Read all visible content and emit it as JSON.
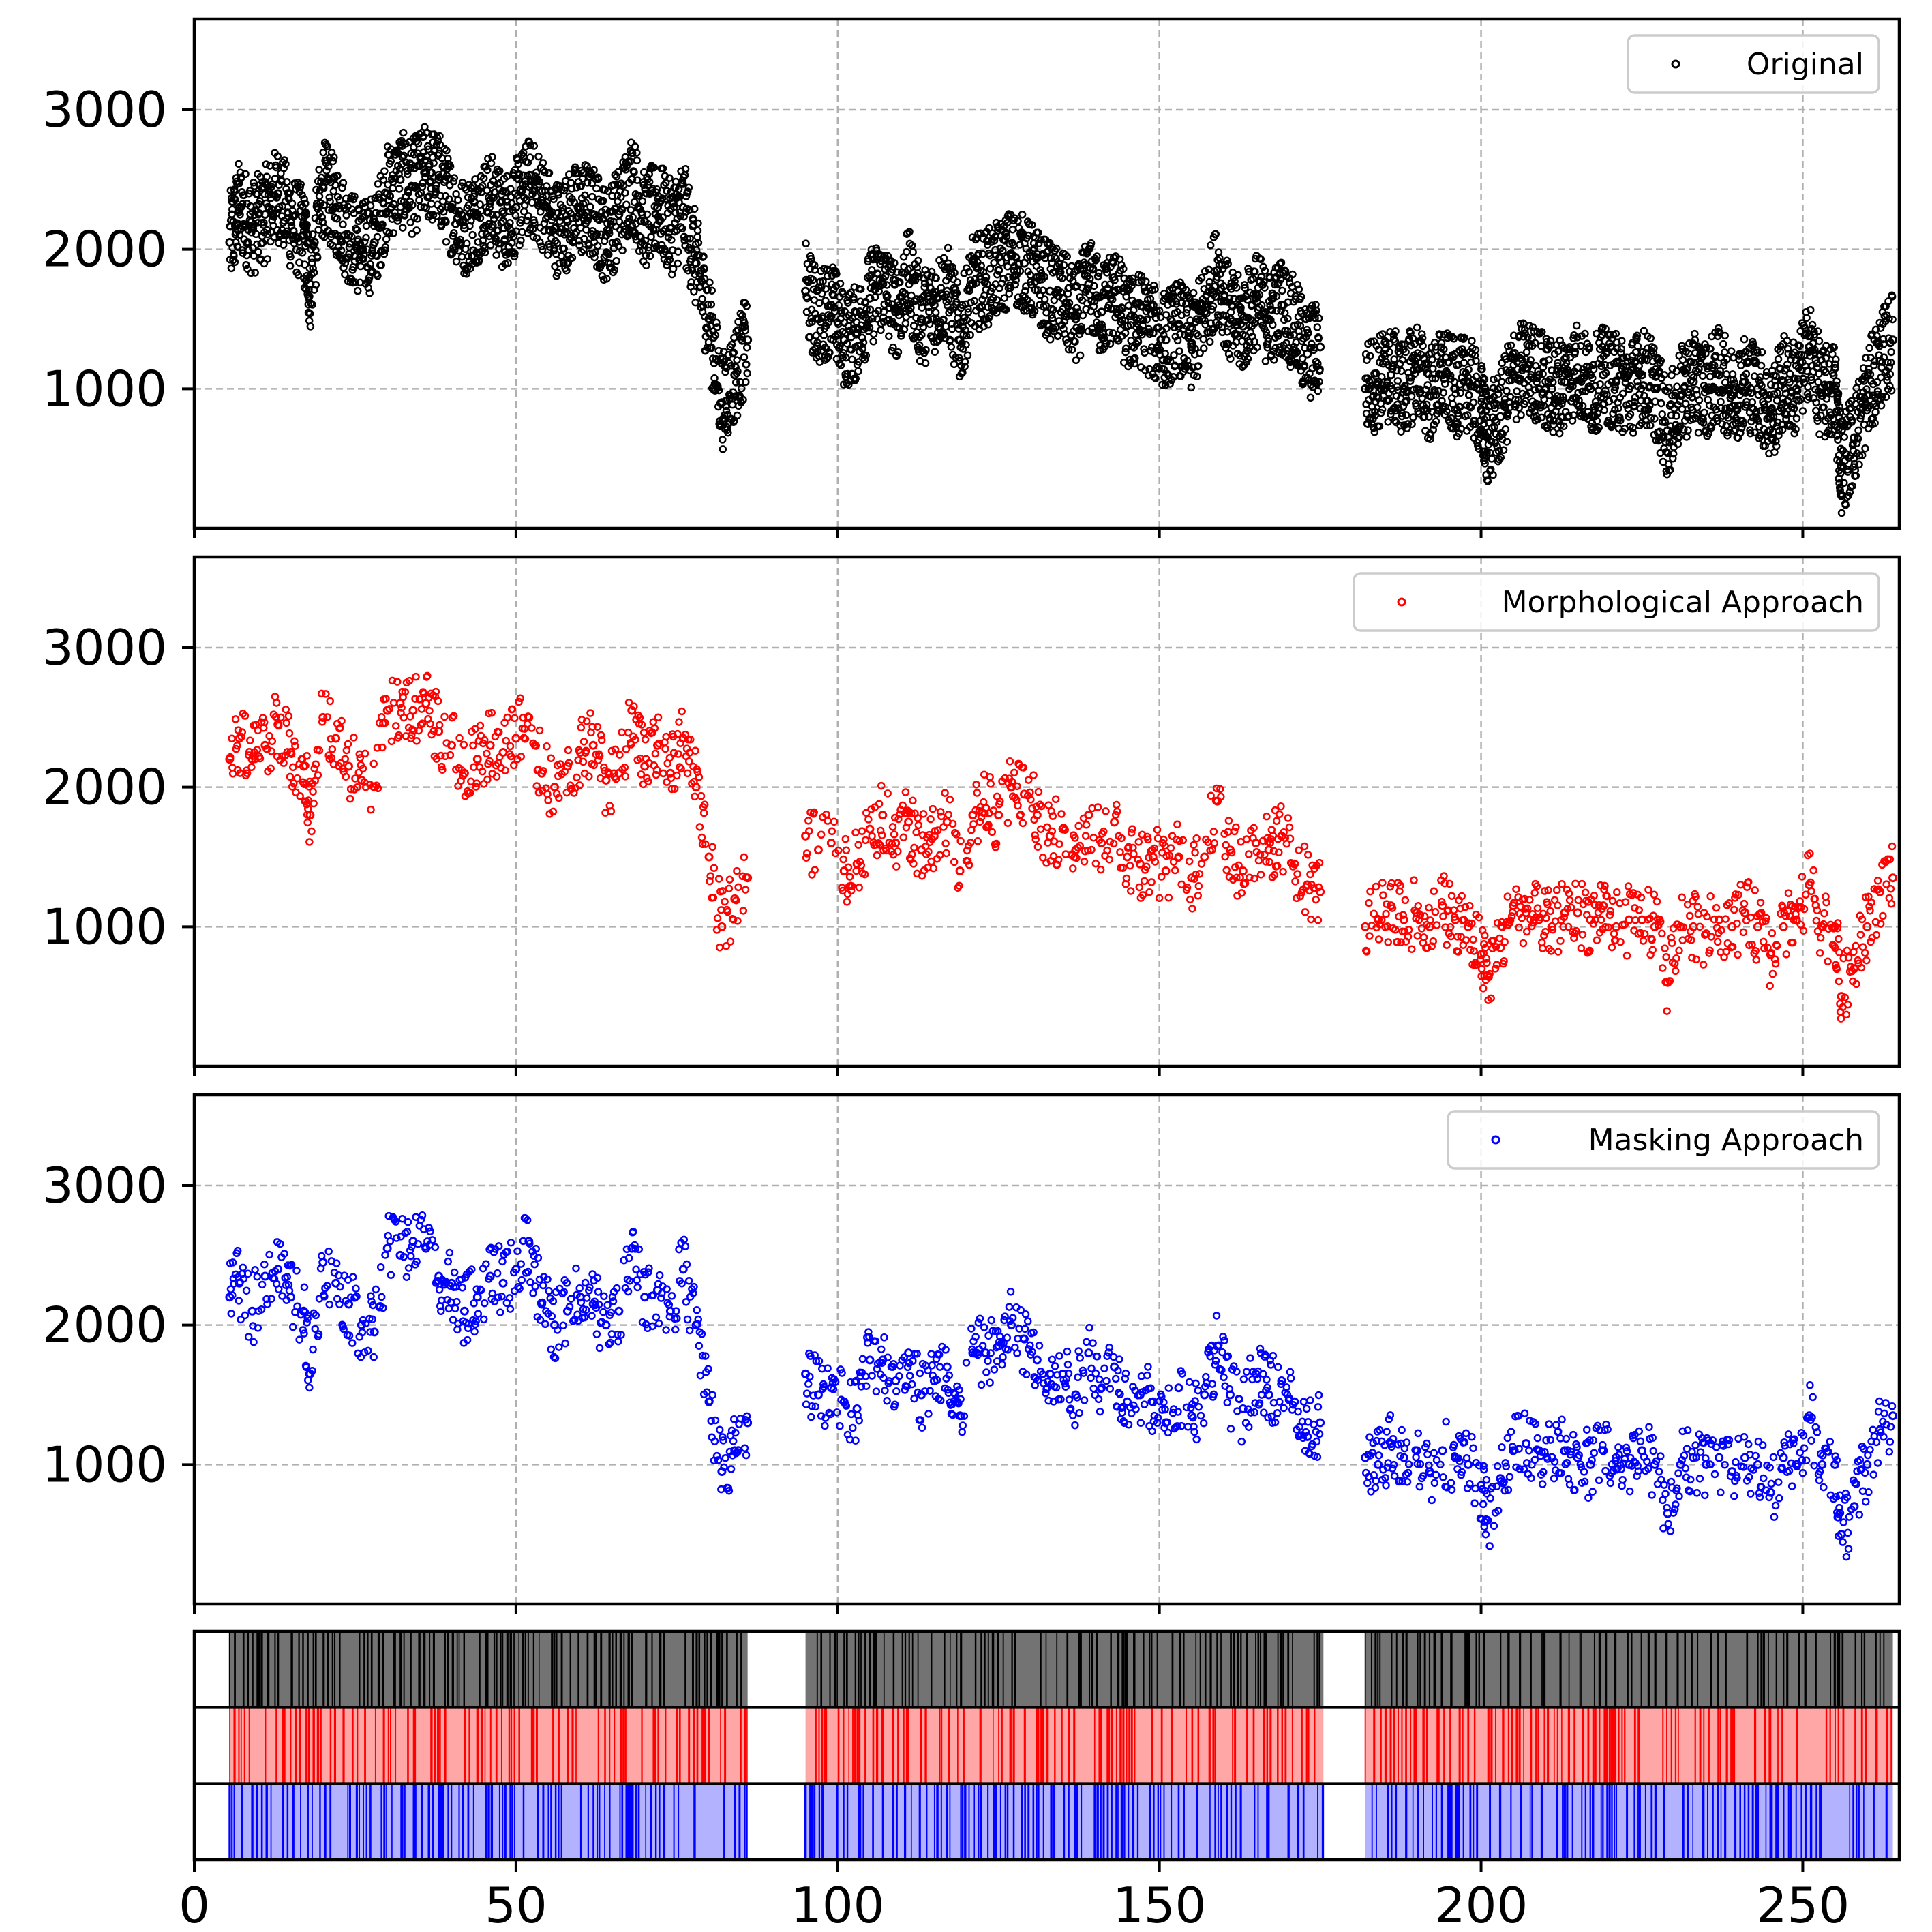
{
  "chart_data": [
    {
      "type": "scatter",
      "title": "",
      "xlabel": "",
      "ylabel": "",
      "xlim": [
        0,
        265
      ],
      "ylim": [
        0,
        3650
      ],
      "yticks": [
        1000,
        2000,
        3000
      ],
      "grid": true,
      "legend_location": "upper right",
      "series": [
        {
          "name": "Original",
          "color": "#000000",
          "marker": "open-circle",
          "segments": [
            {
              "x": [
                5.5,
                7,
                9,
                11,
                13,
                15,
                17,
                18,
                20,
                22,
                24,
                26,
                28,
                30,
                32,
                34,
                36,
                38,
                40,
                42,
                44,
                46,
                48,
                50,
                52,
                54,
                56,
                58,
                60,
                62,
                64,
                66,
                68,
                70,
                72,
                74,
                76,
                78,
                80,
                82,
                84,
                86
              ],
              "y": [
                2050,
                2300,
                2150,
                2250,
                2400,
                2200,
                2100,
                1750,
                2450,
                2300,
                2100,
                2000,
                2050,
                2400,
                2500,
                2450,
                2550,
                2500,
                2300,
                2150,
                2250,
                2350,
                2200,
                2300,
                2450,
                2350,
                2150,
                2200,
                2300,
                2250,
                2100,
                2250,
                2500,
                2200,
                2300,
                2150,
                2300,
                1900,
                1500,
                900,
                1100,
                1350
              ]
            },
            {
              "x": [
                95,
                97,
                99,
                101,
                103,
                105,
                107,
                109,
                111,
                113,
                115,
                117,
                119,
                121,
                123,
                125,
                127,
                129,
                131,
                133,
                135,
                137,
                139,
                141,
                143,
                145,
                147,
                149,
                151,
                153,
                155,
                157,
                159,
                161,
                163,
                165,
                167,
                169,
                171,
                173,
                175
              ],
              "y": [
                1700,
                1500,
                1600,
                1350,
                1400,
                1650,
                1750,
                1550,
                1800,
                1500,
                1600,
                1700,
                1350,
                1750,
                1800,
                1850,
                1950,
                1900,
                1800,
                1700,
                1650,
                1500,
                1750,
                1550,
                1700,
                1450,
                1500,
                1400,
                1350,
                1450,
                1300,
                1550,
                1850,
                1500,
                1450,
                1650,
                1500,
                1600,
                1450,
                1250,
                1300
              ]
            },
            {
              "x": [
                182,
                184,
                186,
                188,
                190,
                192,
                194,
                196,
                198,
                200,
                201,
                203,
                205,
                207,
                209,
                211,
                213,
                215,
                217,
                219,
                221,
                223,
                225,
                227,
                229,
                231,
                233,
                235,
                237,
                239,
                241,
                243,
                245,
                247,
                249,
                251,
                253,
                255,
                256,
                258,
                260,
                262,
                264
              ],
              "y": [
                1000,
                1050,
                1100,
                1000,
                1150,
                950,
                1100,
                1000,
                1050,
                850,
                650,
                800,
                1100,
                1150,
                1100,
                1000,
                1050,
                1150,
                1000,
                1100,
                1050,
                1000,
                1100,
                1000,
                700,
                950,
                1050,
                1000,
                1100,
                950,
                1050,
                1000,
                800,
                1050,
                1000,
                1300,
                950,
                1000,
                450,
                650,
                950,
                1200,
                1350
              ]
            }
          ]
        }
      ]
    },
    {
      "type": "scatter",
      "title": "",
      "xlabel": "",
      "ylabel": "",
      "xlim": [
        0,
        265
      ],
      "ylim": [
        0,
        3650
      ],
      "yticks": [
        1000,
        2000,
        3000
      ],
      "grid": true,
      "legend_location": "upper right",
      "series": [
        {
          "name": "Morphological Approach",
          "color": "#ff0000",
          "marker": "open-circle",
          "segments": [
            {
              "x": [
                5.5,
                7,
                9,
                11,
                13,
                15,
                17,
                18,
                20,
                22,
                24,
                26,
                28,
                30,
                32,
                34,
                36,
                38,
                40,
                42,
                44,
                46,
                48,
                50,
                52,
                54,
                56,
                58,
                60,
                62,
                64,
                66,
                68,
                70,
                72,
                74,
                76,
                78,
                80,
                82,
                84,
                86
              ],
              "y": [
                2200,
                2350,
                2200,
                2300,
                2450,
                2250,
                2150,
                1800,
                2500,
                2350,
                2150,
                2050,
                2000,
                2550,
                2600,
                2550,
                2600,
                2400,
                2300,
                2100,
                2200,
                2300,
                2250,
                2350,
                2500,
                2100,
                2000,
                2150,
                2250,
                2300,
                2050,
                2100,
                2550,
                2150,
                2300,
                2100,
                2350,
                2000,
                1500,
                1000,
                1200,
                1350
              ]
            },
            {
              "x": [
                95,
                97,
                99,
                101,
                103,
                105,
                107,
                109,
                111,
                113,
                115,
                117,
                119,
                121,
                123,
                125,
                127,
                129,
                131,
                133,
                135,
                137,
                139,
                141,
                143,
                145,
                147,
                149,
                151,
                153,
                155,
                157,
                159,
                161,
                163,
                165,
                167,
                169,
                171,
                173,
                175
              ],
              "y": [
                1650,
                1550,
                1600,
                1400,
                1450,
                1700,
                1800,
                1600,
                1750,
                1550,
                1650,
                1750,
                1400,
                1800,
                1850,
                1800,
                2000,
                1950,
                1800,
                1650,
                1700,
                1550,
                1800,
                1600,
                1750,
                1500,
                1450,
                1500,
                1400,
                1500,
                1350,
                1500,
                1900,
                1550,
                1400,
                1600,
                1550,
                1650,
                1450,
                1300,
                1250
              ]
            },
            {
              "x": [
                182,
                184,
                186,
                188,
                190,
                192,
                194,
                196,
                198,
                200,
                201,
                203,
                205,
                207,
                209,
                211,
                213,
                215,
                217,
                219,
                221,
                223,
                225,
                227,
                229,
                231,
                233,
                235,
                237,
                239,
                241,
                243,
                245,
                247,
                249,
                251,
                253,
                255,
                256,
                258,
                260,
                262,
                264
              ],
              "y": [
                1000,
                1050,
                1150,
                1050,
                1100,
                1000,
                1150,
                1050,
                1000,
                800,
                650,
                850,
                1150,
                1100,
                1050,
                1000,
                1100,
                1100,
                1050,
                1150,
                1000,
                1050,
                1050,
                1000,
                600,
                1000,
                1000,
                950,
                1050,
                1000,
                1100,
                1000,
                800,
                1000,
                1050,
                1300,
                1000,
                1000,
                500,
                700,
                1000,
                1250,
                1350
              ]
            }
          ]
        }
      ]
    },
    {
      "type": "scatter",
      "title": "",
      "xlabel": "",
      "ylabel": "",
      "xlim": [
        0,
        265
      ],
      "ylim": [
        0,
        3650
      ],
      "yticks": [
        1000,
        2000,
        3000
      ],
      "grid": true,
      "legend_location": "upper right",
      "series": [
        {
          "name": "Masking Approach",
          "color": "#0000ff",
          "marker": "open-circle",
          "segments": [
            {
              "x": [
                5.5,
                7,
                9,
                11,
                13,
                15,
                17,
                18,
                20,
                22,
                24,
                26,
                28,
                30,
                32,
                34,
                36,
                38,
                40,
                42,
                44,
                46,
                48,
                50,
                52,
                54,
                56,
                58,
                60,
                62,
                64,
                66,
                68,
                70,
                72,
                74,
                76,
                78,
                80,
                82,
                84,
                86
              ],
              "y": [
                2200,
                2300,
                2100,
                2350,
                2400,
                2200,
                2100,
                1650,
                2450,
                2300,
                2150,
                2000,
                1950,
                2550,
                2500,
                2600,
                2550,
                2350,
                2300,
                2100,
                2200,
                2350,
                2300,
                2400,
                2600,
                2150,
                2000,
                2100,
                2200,
                2150,
                2000,
                2100,
                2550,
                2200,
                2250,
                2100,
                2400,
                2000,
                1450,
                950,
                1100,
                1300
              ]
            },
            {
              "x": [
                95,
                97,
                99,
                101,
                103,
                105,
                107,
                109,
                111,
                113,
                115,
                117,
                119,
                121,
                123,
                125,
                127,
                129,
                131,
                133,
                135,
                137,
                139,
                141,
                143,
                145,
                147,
                149,
                151,
                153,
                155,
                157,
                159,
                161,
                163,
                165,
                167,
                169,
                171,
                173,
                175
              ],
              "y": [
                1650,
                1500,
                1550,
                1450,
                1400,
                1750,
                1750,
                1600,
                1800,
                1500,
                1600,
                1700,
                1350,
                1800,
                1800,
                1850,
                2000,
                1900,
                1750,
                1650,
                1650,
                1500,
                1800,
                1550,
                1700,
                1450,
                1500,
                1450,
                1300,
                1550,
                1350,
                1500,
                1850,
                1500,
                1400,
                1650,
                1500,
                1600,
                1450,
                1200,
                1300
              ]
            },
            {
              "x": [
                182,
                184,
                186,
                188,
                190,
                192,
                194,
                196,
                198,
                200,
                201,
                203,
                205,
                207,
                209,
                211,
                213,
                215,
                217,
                219,
                221,
                223,
                225,
                227,
                229,
                231,
                233,
                235,
                237,
                239,
                241,
                243,
                245,
                247,
                249,
                251,
                253,
                255,
                256,
                258,
                260,
                262,
                264
              ],
              "y": [
                1050,
                1000,
                1150,
                1050,
                1100,
                950,
                1100,
                1050,
                1000,
                850,
                600,
                900,
                1100,
                1150,
                1100,
                1050,
                1100,
                1050,
                1000,
                1100,
                1050,
                1000,
                1100,
                1000,
                650,
                1000,
                1050,
                1000,
                1050,
                950,
                1050,
                1000,
                800,
                1050,
                1000,
                1350,
                1000,
                1000,
                500,
                700,
                1000,
                1250,
                1350
              ]
            }
          ]
        }
      ]
    },
    {
      "type": "event-raster",
      "xlim": [
        0,
        265
      ],
      "xticks": [
        0,
        50,
        100,
        150,
        200,
        250
      ],
      "rows": [
        {
          "name": "Original",
          "color": "#000000",
          "ranges": [
            [
              5.5,
              86
            ],
            [
              95,
              175.5
            ],
            [
              182,
              264
            ]
          ],
          "density": 0.55
        },
        {
          "name": "Morphological Approach",
          "color": "#ff0000",
          "ranges": [
            [
              5.5,
              86
            ],
            [
              95,
              175.5
            ],
            [
              182,
              264
            ]
          ],
          "density": 0.35
        },
        {
          "name": "Masking Approach",
          "color": "#0000ff",
          "ranges": [
            [
              5.5,
              86
            ],
            [
              95,
              175.5
            ],
            [
              182,
              264
            ]
          ],
          "density": 0.3
        }
      ]
    }
  ]
}
